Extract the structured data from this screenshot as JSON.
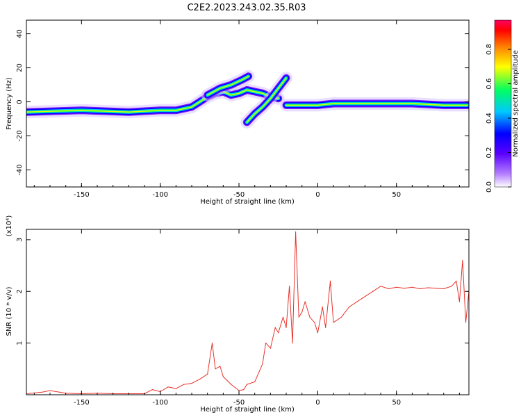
{
  "title": "C2E2.2023.243.02.35.R03",
  "chart_data": [
    {
      "type": "heatmap",
      "xlabel": "Height of straight line (km)",
      "ylabel": "Frequency (Hz)",
      "xlim": [
        -185,
        96
      ],
      "ylim": [
        -50,
        48
      ],
      "xticks": [
        -150,
        -100,
        -50,
        0,
        50
      ],
      "yticks": [
        -40,
        -20,
        0,
        20,
        40
      ],
      "colorbar": {
        "label": "Normalized spectral amplitude",
        "range": [
          0,
          0.97
        ],
        "ticks": [
          0.0,
          0.2,
          0.4,
          0.6,
          0.8
        ],
        "colormap": [
          "#ffffff",
          "#b37cff",
          "#5a00ff",
          "#0000ff",
          "#00c8ff",
          "#00ff60",
          "#ffff00",
          "#ff8000",
          "#ff0000",
          "#ff0060"
        ]
      },
      "ridges": [
        {
          "name": "",
          "x": [
            -185,
            -150,
            -120,
            -100,
            -90,
            -80,
            -75,
            -70,
            -65,
            -60,
            -55,
            -50,
            -45,
            -40,
            -35,
            -30,
            -25
          ],
          "y": [
            -6,
            -5,
            -6,
            -5,
            -5,
            -3,
            0,
            3,
            5,
            6,
            4,
            5,
            7,
            6,
            5,
            3,
            2
          ]
        },
        {
          "name": "",
          "x": [
            -70,
            -62,
            -55,
            -48,
            -44
          ],
          "y": [
            4,
            8,
            10,
            13,
            15
          ]
        },
        {
          "name": "",
          "x": [
            -45,
            -40,
            -35,
            -30,
            -25,
            -20
          ],
          "y": [
            -12,
            -7,
            -3,
            2,
            8,
            14
          ]
        },
        {
          "name": "",
          "x": [
            -20,
            -10,
            0,
            10,
            20,
            40,
            60,
            80,
            95
          ],
          "y": [
            -2,
            -2,
            -2,
            -1,
            -1,
            -1,
            -1,
            -2,
            -2
          ]
        }
      ]
    },
    {
      "type": "line",
      "xlabel": "Height of straight line (km)",
      "ylabel": "SNR (10 * v/v)",
      "yunit": "(x10⁴)",
      "xlim": [
        -185,
        96
      ],
      "ylim": [
        0,
        3.2
      ],
      "xticks": [
        -150,
        -100,
        -50,
        0,
        50
      ],
      "yticks": [
        1,
        2,
        3
      ],
      "color": "#e8312a",
      "series": [
        {
          "name": "",
          "x": [
            -185,
            -175,
            -170,
            -160,
            -150,
            -140,
            -130,
            -120,
            -110,
            -105,
            -100,
            -95,
            -90,
            -85,
            -80,
            -75,
            -70,
            -67,
            -65,
            -62,
            -60,
            -55,
            -50,
            -47,
            -45,
            -40,
            -35,
            -33,
            -30,
            -27,
            -25,
            -22,
            -20,
            -18,
            -16,
            -14,
            -12,
            -10,
            -8,
            -5,
            -2,
            0,
            3,
            5,
            8,
            10,
            15,
            20,
            25,
            30,
            35,
            40,
            45,
            50,
            55,
            60,
            65,
            70,
            75,
            80,
            85,
            88,
            90,
            92,
            94,
            96
          ],
          "y": [
            0.02,
            0.05,
            0.08,
            0.03,
            0.02,
            0.03,
            0.02,
            0.02,
            0.02,
            0.1,
            0.06,
            0.15,
            0.12,
            0.2,
            0.22,
            0.3,
            0.4,
            1.0,
            0.5,
            0.55,
            0.35,
            0.2,
            0.08,
            0.1,
            0.2,
            0.25,
            0.6,
            1.0,
            0.9,
            1.3,
            1.2,
            1.5,
            1.3,
            2.1,
            1.0,
            3.15,
            1.5,
            1.6,
            1.8,
            1.5,
            1.4,
            1.2,
            1.7,
            1.3,
            2.2,
            1.4,
            1.5,
            1.7,
            1.8,
            1.9,
            2.0,
            2.1,
            2.05,
            2.08,
            2.06,
            2.08,
            2.05,
            2.07,
            2.06,
            2.05,
            2.1,
            2.2,
            1.8,
            2.6,
            1.4,
            2.0
          ]
        }
      ]
    }
  ]
}
